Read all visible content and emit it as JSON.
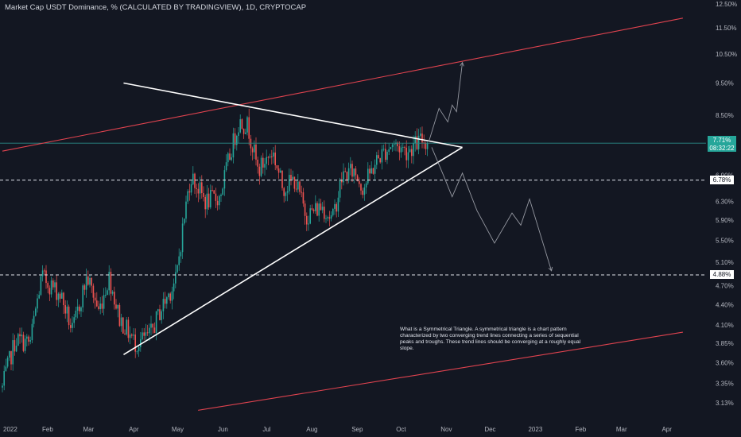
{
  "header": {
    "title": "Market Cap USDT Dominance, % (CALCULATED BY TRADINGVIEW), 1D, CRYPTOCAP"
  },
  "price_badge": {
    "value": "7.71%",
    "time": "08:32:22"
  },
  "level_badges": [
    "6.78%",
    "4.88%"
  ],
  "annotation": "What is a Symmetrical Triangle. A symmetrical triangle is a chart pattern characterized by two converging trend lines connecting a series of sequential peaks and troughs. These trend lines should be converging at a roughly equal slope.",
  "colors": {
    "background": "#131722",
    "up": "#26a69a",
    "down": "#ef5350",
    "channel": "#e0434f",
    "triangle": "#ffffff",
    "projection": "#9598a1"
  },
  "chart_data": {
    "type": "candlestick",
    "title": "Market Cap USDT Dominance, % (CALCULATED BY TRADINGVIEW), 1D, CRYPTOCAP",
    "y_axis": {
      "scale": "log",
      "position": "right",
      "ticks": [
        "12.50%",
        "11.50%",
        "10.50%",
        "9.50%",
        "8.50%",
        "7.71%",
        "6.90%",
        "6.30%",
        "5.90%",
        "5.50%",
        "5.10%",
        "4.70%",
        "4.40%",
        "4.10%",
        "3.85%",
        "3.60%",
        "3.35%",
        "3.13%"
      ],
      "tick_values": [
        12.5,
        11.5,
        10.5,
        9.5,
        8.5,
        7.71,
        6.9,
        6.3,
        5.9,
        5.5,
        5.1,
        4.7,
        4.4,
        4.1,
        3.85,
        3.6,
        3.35,
        3.13
      ]
    },
    "x_axis": {
      "tick_labels": [
        "2022",
        "Feb",
        "Mar",
        "Apr",
        "May",
        "Jun",
        "Jul",
        "Aug",
        "Sep",
        "Oct",
        "Nov",
        "Dec",
        "2023",
        "Feb",
        "Mar",
        "Apr"
      ],
      "tick_dates": [
        "2022-01-01",
        "2022-02-01",
        "2022-03-01",
        "2022-04-01",
        "2022-05-01",
        "2022-06-01",
        "2022-07-01",
        "2022-08-01",
        "2022-09-01",
        "2022-10-01",
        "2022-11-01",
        "2022-12-01",
        "2023-01-01",
        "2023-02-01",
        "2023-03-01",
        "2023-04-01"
      ]
    },
    "price_path": [
      [
        "2022-01-01",
        3.3
      ],
      [
        "2022-01-10",
        3.9
      ],
      [
        "2022-01-20",
        3.85
      ],
      [
        "2022-01-28",
        4.85
      ],
      [
        "2022-02-10",
        4.55
      ],
      [
        "2022-02-18",
        4.0
      ],
      [
        "2022-02-28",
        4.85
      ],
      [
        "2022-03-08",
        4.3
      ],
      [
        "2022-03-15",
        4.85
      ],
      [
        "2022-03-22",
        4.2
      ],
      [
        "2022-04-02",
        3.85
      ],
      [
        "2022-04-12",
        3.95
      ],
      [
        "2022-04-20",
        4.35
      ],
      [
        "2022-04-30",
        4.8
      ],
      [
        "2022-05-10",
        6.9
      ],
      [
        "2022-05-20",
        6.3
      ],
      [
        "2022-05-30",
        6.4
      ],
      [
        "2022-06-12",
        8.3
      ],
      [
        "2022-06-18",
        8.2
      ],
      [
        "2022-06-25",
        7.0
      ],
      [
        "2022-07-05",
        7.5
      ],
      [
        "2022-07-12",
        6.6
      ],
      [
        "2022-07-20",
        6.8
      ],
      [
        "2022-07-28",
        6.0
      ],
      [
        "2022-08-08",
        6.2
      ],
      [
        "2022-08-15",
        5.9
      ],
      [
        "2022-08-22",
        6.9
      ],
      [
        "2022-08-30",
        7.0
      ],
      [
        "2022-09-05",
        6.6
      ],
      [
        "2022-09-15",
        7.3
      ],
      [
        "2022-09-25",
        7.7
      ],
      [
        "2022-10-05",
        7.5
      ],
      [
        "2022-10-15",
        7.8
      ],
      [
        "2022-10-20",
        7.71
      ]
    ],
    "horizontal_levels": [
      {
        "value": 7.71,
        "style": "solid"
      },
      {
        "value": 6.78,
        "style": "dashed"
      },
      {
        "value": 4.88,
        "style": "dashed"
      }
    ],
    "symmetrical_triangle": {
      "upper_line": [
        [
          "2022-03-25",
          9.5
        ],
        [
          "2022-11-12",
          7.6
        ]
      ],
      "lower_line": [
        [
          "2022-03-25",
          3.7
        ],
        [
          "2022-11-12",
          7.6
        ]
      ]
    },
    "channel_lines": [
      {
        "from": [
          "2022-01-01",
          7.5
        ],
        "to": [
          "2023-04-12",
          11.9
        ]
      },
      {
        "from": [
          "2022-05-15",
          3.05
        ],
        "to": [
          "2023-04-12",
          4.0
        ]
      }
    ],
    "projection_up": [
      [
        "2022-10-20",
        7.75
      ],
      [
        "2022-10-27",
        8.7
      ],
      [
        "2022-11-02",
        8.3
      ],
      [
        "2022-11-05",
        8.8
      ],
      [
        "2022-11-08",
        8.6
      ],
      [
        "2022-11-12",
        10.2
      ]
    ],
    "projection_down": [
      [
        "2022-10-22",
        7.6
      ],
      [
        "2022-10-30",
        6.9
      ],
      [
        "2022-11-05",
        6.4
      ],
      [
        "2022-11-12",
        6.95
      ],
      [
        "2022-11-22",
        6.1
      ],
      [
        "2022-12-04",
        5.45
      ],
      [
        "2022-12-16",
        6.05
      ],
      [
        "2022-12-22",
        5.8
      ],
      [
        "2022-12-28",
        6.35
      ],
      [
        "2023-01-12",
        4.95
      ]
    ]
  }
}
